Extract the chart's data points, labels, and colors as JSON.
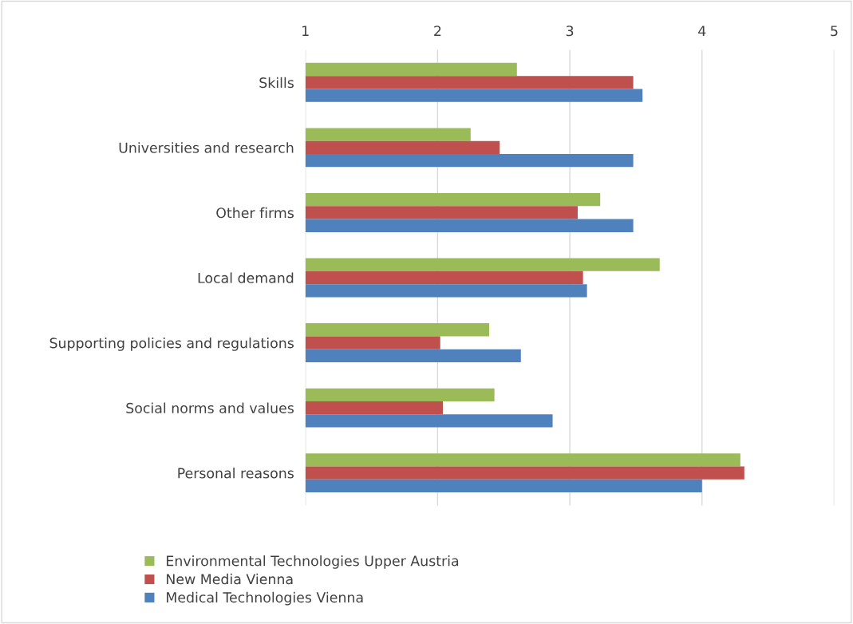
{
  "chart_data": {
    "type": "bar",
    "orientation": "horizontal",
    "categories": [
      "Skills",
      "Universities and research",
      "Other firms",
      "Local demand",
      "Supporting policies and regulations",
      "Social norms and values",
      "Personal reasons"
    ],
    "series": [
      {
        "name": "Environmental Technologies Upper Austria",
        "color": "#9bbb59",
        "values": [
          2.6,
          2.25,
          3.23,
          3.68,
          2.39,
          2.43,
          4.29
        ]
      },
      {
        "name": "New Media Vienna",
        "color": "#c0504d",
        "values": [
          3.48,
          2.47,
          3.06,
          3.1,
          2.02,
          2.04,
          4.32
        ]
      },
      {
        "name": "Medical Technologies Vienna",
        "color": "#4f81bd",
        "values": [
          3.55,
          3.48,
          3.48,
          3.13,
          2.63,
          2.87,
          4.0
        ]
      }
    ],
    "xlim": [
      1,
      5
    ],
    "xticks": [
      1,
      2,
      3,
      4,
      5
    ],
    "grid": "x",
    "legend": "bottom"
  }
}
